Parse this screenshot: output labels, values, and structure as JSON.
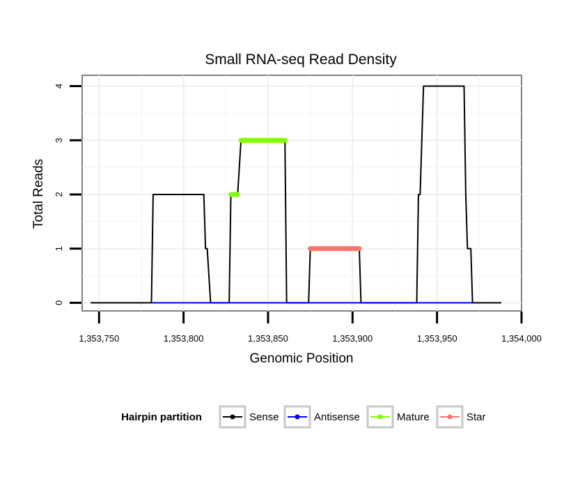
{
  "chart_data": {
    "type": "line",
    "title": "Small RNA-seq Read Density",
    "xlabel": "Genomic Position",
    "ylabel": "Total Reads",
    "xlim": [
      1353740,
      1354000
    ],
    "ylim": [
      -0.15,
      4.2
    ],
    "x_ticks": [
      1353750,
      1353800,
      1353850,
      1353900,
      1353950,
      1354000
    ],
    "x_tick_labels": [
      "1,353,750",
      "1,353,800",
      "1,353,850",
      "1,353,900",
      "1,353,950",
      "1,354,000"
    ],
    "y_ticks": [
      0,
      1,
      2,
      3,
      4
    ],
    "y_tick_labels": [
      "0",
      "1",
      "2",
      "3",
      "4"
    ],
    "grid": true,
    "legend": {
      "title": "Hairpin partition",
      "placement": "bottom",
      "entries": [
        "Sense",
        "Antisense",
        "Mature",
        "Star"
      ]
    },
    "series": [
      {
        "name": "Sense",
        "color": "#000000",
        "kind": "line",
        "points": [
          [
            1353745,
            0
          ],
          [
            1353781,
            0
          ],
          [
            1353782,
            2
          ],
          [
            1353812,
            2
          ],
          [
            1353813,
            1
          ],
          [
            1353814,
            1
          ],
          [
            1353816,
            0
          ],
          [
            1353827,
            0
          ],
          [
            1353828,
            2
          ],
          [
            1353832,
            2
          ],
          [
            1353834,
            3
          ],
          [
            1353860,
            3
          ],
          [
            1353861,
            0
          ],
          [
            1353874,
            0
          ],
          [
            1353875,
            1
          ],
          [
            1353904,
            1
          ],
          [
            1353905,
            0
          ],
          [
            1353938,
            0
          ],
          [
            1353939,
            2
          ],
          [
            1353940,
            2
          ],
          [
            1353942,
            4
          ],
          [
            1353966,
            4
          ],
          [
            1353967,
            2
          ],
          [
            1353968,
            1
          ],
          [
            1353970,
            1
          ],
          [
            1353971,
            0
          ],
          [
            1353988,
            0
          ]
        ]
      },
      {
        "name": "Antisense",
        "color": "#0000ff",
        "kind": "line",
        "points": [
          [
            1353781,
            0
          ],
          [
            1353816,
            0
          ],
          [
            1353827,
            0
          ],
          [
            1353861,
            0
          ],
          [
            1353874,
            0
          ],
          [
            1353905,
            0
          ],
          [
            1353938,
            0
          ],
          [
            1353971,
            0
          ]
        ]
      },
      {
        "name": "Mature",
        "color": "#7fff00",
        "kind": "segments",
        "points": [
          [
            1353828,
            2
          ],
          [
            1353832,
            2
          ],
          [
            1353834,
            3
          ],
          [
            1353860,
            3
          ]
        ]
      },
      {
        "name": "Star",
        "color": "#f8766d",
        "kind": "segments",
        "points": [
          [
            1353875,
            1
          ],
          [
            1353904,
            1
          ]
        ]
      }
    ]
  }
}
